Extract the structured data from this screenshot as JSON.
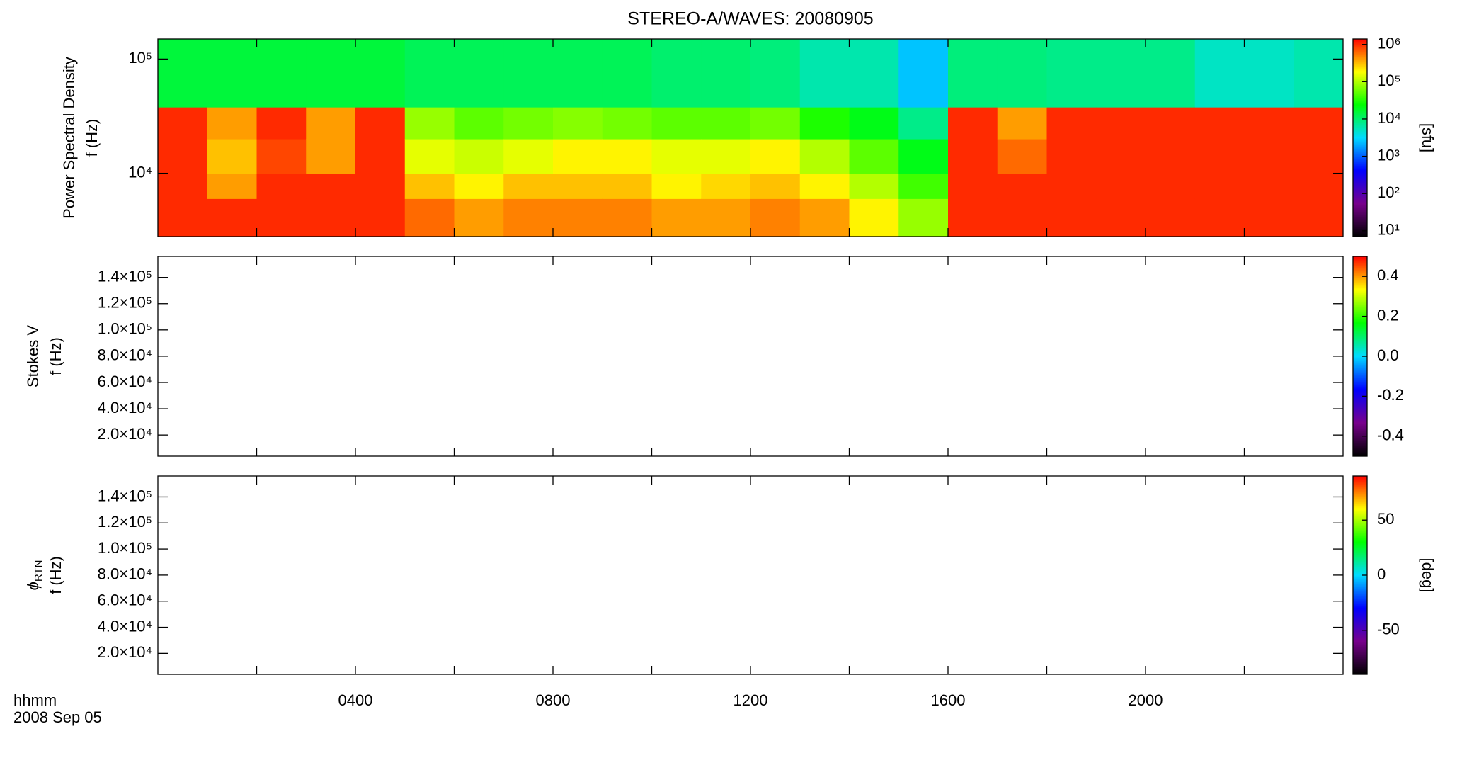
{
  "chart_data": [
    {
      "type": "heatmap",
      "title": "STEREO-A/WAVES: 20080905",
      "ylabel": [
        "Power Spectral Density",
        "f (Hz)"
      ],
      "xlim": [
        0,
        24
      ],
      "xticks": [
        2,
        4,
        6,
        8,
        10,
        12,
        14,
        16,
        18,
        20,
        22
      ],
      "ylim": [
        2790,
        150000
      ],
      "ylog": true,
      "yticks": [
        {
          "value": 10000,
          "label": "10⁴"
        },
        {
          "value": 100000,
          "label": "10⁵"
        }
      ],
      "x_bins": [
        0,
        1,
        2,
        3,
        4,
        5,
        6,
        7,
        8,
        9,
        10,
        11,
        12,
        13,
        14,
        15,
        16,
        17,
        18,
        19,
        20,
        21,
        22,
        23,
        24
      ],
      "y_bins": [
        2790,
        6000,
        10000,
        20000,
        38000,
        150000
      ],
      "z": [
        [
          1000000,
          1000000,
          1000000,
          1000000,
          15000
        ],
        [
          1000000,
          400000,
          300000,
          400000,
          15000
        ],
        [
          1000000,
          1000000,
          800000,
          1000000,
          15000
        ],
        [
          1000000,
          1000000,
          400000,
          400000,
          15000
        ],
        [
          1000000,
          1000000,
          1000000,
          1000000,
          15000
        ],
        [
          600000,
          300000,
          150000,
          80000,
          12000
        ],
        [
          400000,
          200000,
          120000,
          50000,
          12000
        ],
        [
          500000,
          300000,
          150000,
          60000,
          12000
        ],
        [
          500000,
          300000,
          200000,
          70000,
          12000
        ],
        [
          500000,
          300000,
          200000,
          60000,
          12000
        ],
        [
          400000,
          200000,
          150000,
          50000,
          10000
        ],
        [
          400000,
          250000,
          150000,
          50000,
          10000
        ],
        [
          500000,
          300000,
          200000,
          60000,
          9000
        ],
        [
          400000,
          200000,
          100000,
          30000,
          6000
        ],
        [
          200000,
          100000,
          50000,
          20000,
          6000
        ],
        [
          80000,
          40000,
          20000,
          8000,
          2500
        ],
        [
          1000000,
          1000000,
          1000000,
          1000000,
          9000
        ],
        [
          1000000,
          1000000,
          600000,
          400000,
          9000
        ],
        [
          1000000,
          1000000,
          1000000,
          1000000,
          8000
        ],
        [
          1000000,
          1000000,
          1000000,
          1000000,
          8000
        ],
        [
          1000000,
          1000000,
          1000000,
          1000000,
          8000
        ],
        [
          1000000,
          1000000,
          1000000,
          1000000,
          5000
        ],
        [
          1000000,
          1000000,
          1000000,
          1000000,
          5000
        ],
        [
          1000000,
          1000000,
          1000000,
          1000000,
          6000
        ]
      ],
      "zlim": [
        7,
        1400000
      ],
      "zlog": true,
      "zlabel": "[sfu]",
      "zticks": [
        {
          "value": 10,
          "label": "10¹"
        },
        {
          "value": 100,
          "label": "10²"
        },
        {
          "value": 1000,
          "label": "10³"
        },
        {
          "value": 10000,
          "label": "10⁴"
        },
        {
          "value": 100000,
          "label": "10⁵"
        },
        {
          "value": 1000000,
          "label": "10⁶"
        }
      ],
      "colormap": [
        "#000000",
        "#78008c",
        "#0000ff",
        "#00dcff",
        "#00ff00",
        "#ffff00",
        "#ff0000"
      ]
    },
    {
      "type": "heatmap",
      "ylabel": [
        "Stokes V",
        "f (Hz)"
      ],
      "xlim": [
        0,
        24
      ],
      "xticks": [
        2,
        4,
        6,
        8,
        10,
        12,
        14,
        16,
        18,
        20,
        22
      ],
      "ylim": [
        3900,
        156000
      ],
      "yticks": [
        {
          "value": 20000,
          "label": "2.0×10⁴"
        },
        {
          "value": 40000,
          "label": "4.0×10⁴"
        },
        {
          "value": 60000,
          "label": "6.0×10⁴"
        },
        {
          "value": 80000,
          "label": "8.0×10⁴"
        },
        {
          "value": 100000,
          "label": "1.0×10⁵"
        },
        {
          "value": 120000,
          "label": "1.2×10⁵"
        },
        {
          "value": 140000,
          "label": "1.4×10⁵"
        }
      ],
      "zlim": [
        -0.5,
        0.5
      ],
      "zticks": [
        -0.4,
        -0.2,
        {
          "value": 0,
          "label": "0.0"
        },
        0.2,
        0.4
      ],
      "colormap": [
        "#000000",
        "#78008c",
        "#0000ff",
        "#00dcff",
        "#00ff00",
        "#ffff00",
        "#ff0000"
      ]
    },
    {
      "type": "heatmap",
      "ylabel": [
        "ϕ",
        "RTN",
        "f (Hz)"
      ],
      "xlim": [
        0,
        24
      ],
      "xticks": [
        2,
        4,
        6,
        8,
        10,
        12,
        14,
        16,
        18,
        20,
        22
      ],
      "xtick_labels": [
        {
          "value": 4,
          "label": "0400"
        },
        {
          "value": 8,
          "label": "0800"
        },
        {
          "value": 12,
          "label": "1200"
        },
        {
          "value": 16,
          "label": "1600"
        },
        {
          "value": 20,
          "label": "2000"
        }
      ],
      "xlabel": [
        "hhmm",
        "2008 Sep 05"
      ],
      "ylim": [
        3900,
        156000
      ],
      "yticks": [
        {
          "value": 20000,
          "label": "2.0×10⁴"
        },
        {
          "value": 40000,
          "label": "4.0×10⁴"
        },
        {
          "value": 60000,
          "label": "6.0×10⁴"
        },
        {
          "value": 80000,
          "label": "8.0×10⁴"
        },
        {
          "value": 100000,
          "label": "1.0×10⁵"
        },
        {
          "value": 120000,
          "label": "1.2×10⁵"
        },
        {
          "value": 140000,
          "label": "1.4×10⁵"
        }
      ],
      "zlim": [
        -90,
        90
      ],
      "zlabel": "[deg]",
      "zticks": [
        -50,
        0,
        50
      ],
      "colormap": [
        "#000000",
        "#78008c",
        "#0000ff",
        "#00dcff",
        "#00ff00",
        "#ffff00",
        "#ff0000"
      ]
    }
  ]
}
